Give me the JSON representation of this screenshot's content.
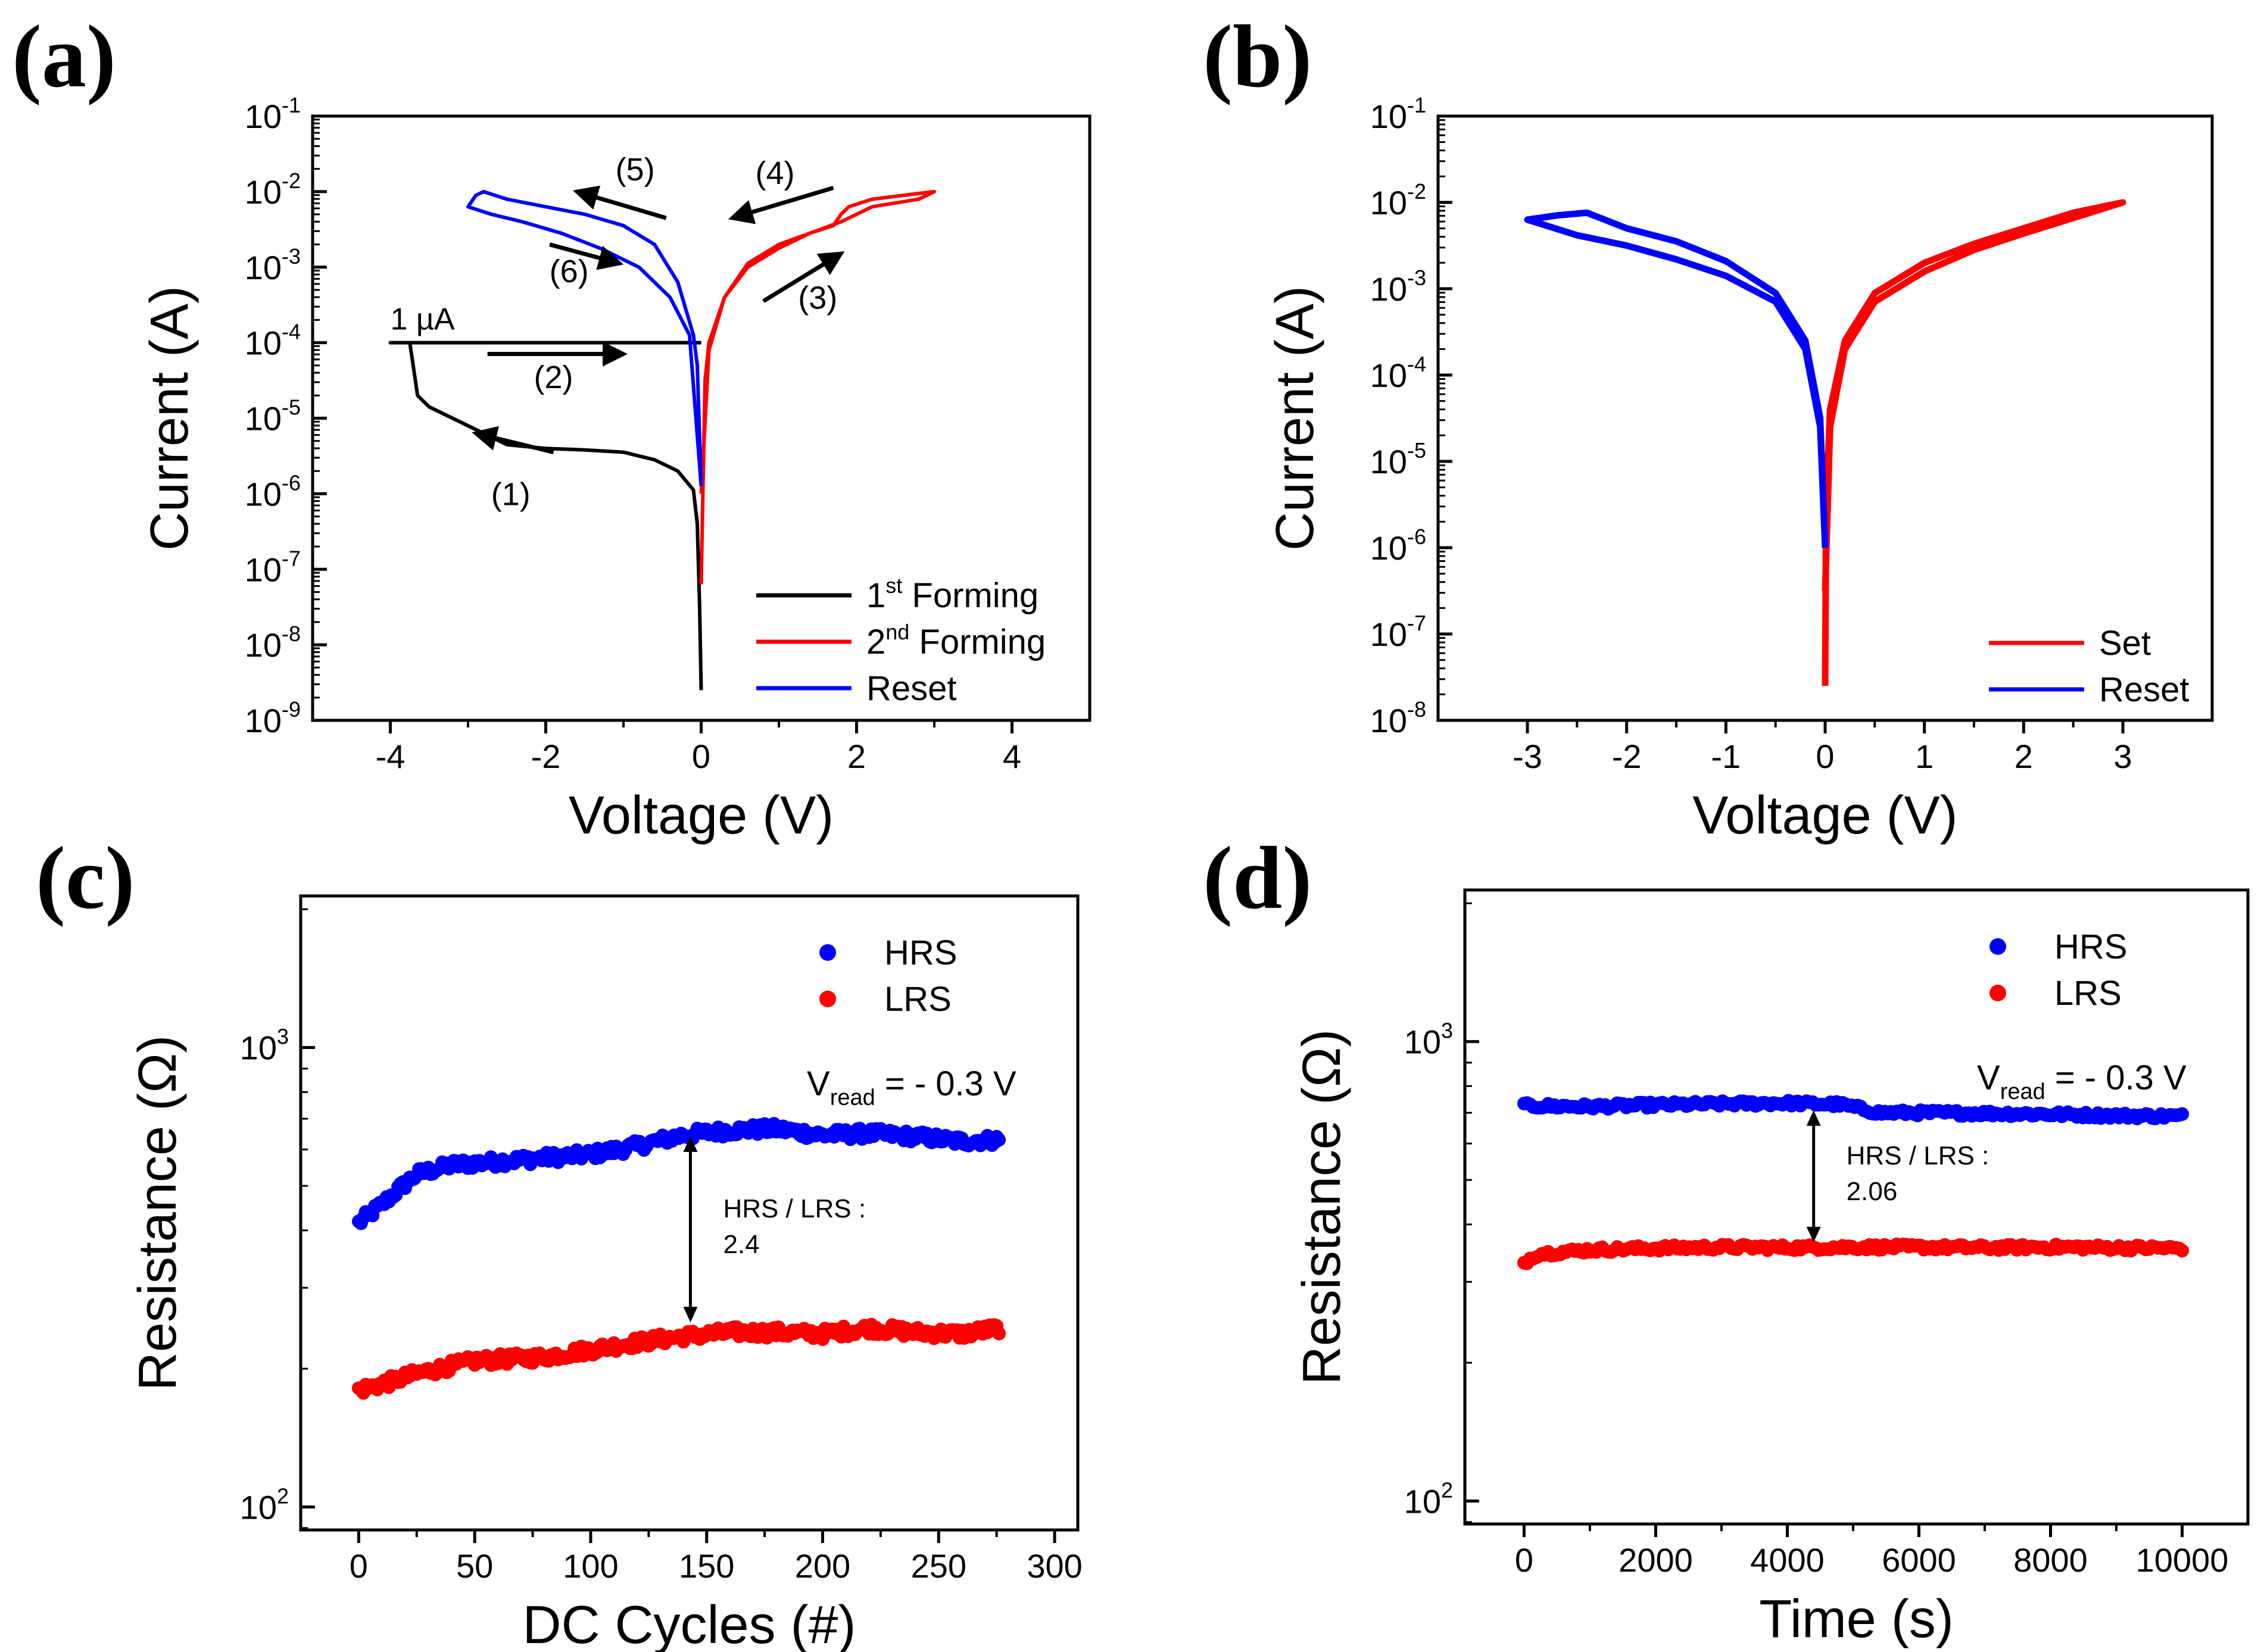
{
  "chart_data": [
    {
      "id": "a",
      "panel_label": "(a)",
      "type": "line",
      "xlabel": "Voltage (V)",
      "ylabel": "Current (A)",
      "yscale": "log",
      "xlim": [
        -5,
        5
      ],
      "ylim_exp": [
        -9,
        -1
      ],
      "x_ticks": [
        "-4",
        "-2",
        "0",
        "2",
        "4"
      ],
      "x_tick_values": [
        -4,
        -2,
        0,
        2,
        4
      ],
      "y_tick_exps": [
        "-9",
        "-8",
        "-7",
        "-6",
        "-5",
        "-4",
        "-3",
        "-2",
        "-1"
      ],
      "y_tick_base": "10",
      "legend": [
        {
          "name_main": "1",
          "name_sup": "st",
          "name_rest": " Forming",
          "color": "#000000"
        },
        {
          "name_main": "2",
          "name_sup": "nd",
          "name_rest": " Forming",
          "color": "#ff0000"
        },
        {
          "name_main": "Reset",
          "name_sup": "",
          "name_rest": "",
          "color": "#0000ff"
        }
      ],
      "annotations": {
        "compliance": "1 µA",
        "steps": [
          "(1)",
          "(2)",
          "(3)",
          "(4)",
          "(5)",
          "(6)"
        ]
      },
      "series": [
        {
          "name": "1st Forming",
          "color": "#000000",
          "points": [
            [
              0.0,
              -8.6
            ],
            [
              -0.02,
              -7.5
            ],
            [
              -0.05,
              -6.4
            ],
            [
              -0.1,
              -5.95
            ],
            [
              -0.3,
              -5.7
            ],
            [
              -0.6,
              -5.55
            ],
            [
              -1.0,
              -5.45
            ],
            [
              -1.5,
              -5.42
            ],
            [
              -2.0,
              -5.4
            ],
            [
              -2.5,
              -5.35
            ],
            [
              -2.6,
              -5.3
            ],
            [
              -2.9,
              -5.15
            ],
            [
              -3.2,
              -5.0
            ],
            [
              -3.5,
              -4.85
            ],
            [
              -3.65,
              -4.7
            ],
            [
              -3.72,
              -4.2
            ],
            [
              -3.75,
              -4.0
            ],
            [
              -4.0,
              -4.0
            ],
            [
              0.0,
              -4.0
            ]
          ]
        },
        {
          "name": "2nd Forming",
          "color": "#ff0000",
          "points": [
            [
              0.0,
              -7.2
            ],
            [
              0.05,
              -4.5
            ],
            [
              0.1,
              -4.0
            ],
            [
              0.3,
              -3.4
            ],
            [
              0.6,
              -2.95
            ],
            [
              1.0,
              -2.7
            ],
            [
              1.4,
              -2.55
            ],
            [
              1.7,
              -2.45
            ],
            [
              1.8,
              -2.3
            ],
            [
              1.9,
              -2.2
            ],
            [
              2.2,
              -2.1
            ],
            [
              2.6,
              -2.05
            ],
            [
              3.0,
              -2.0
            ],
            [
              2.8,
              -2.1
            ],
            [
              2.5,
              -2.15
            ],
            [
              2.2,
              -2.2
            ],
            [
              1.8,
              -2.4
            ],
            [
              1.4,
              -2.55
            ],
            [
              1.0,
              -2.75
            ],
            [
              0.6,
              -3.0
            ],
            [
              0.3,
              -3.4
            ],
            [
              0.1,
              -4.1
            ],
            [
              0.0,
              -6.0
            ]
          ]
        },
        {
          "name": "Reset",
          "color": "#0000ff",
          "points": [
            [
              0.0,
              -5.9
            ],
            [
              -0.05,
              -4.3
            ],
            [
              -0.1,
              -3.9
            ],
            [
              -0.3,
              -3.2
            ],
            [
              -0.6,
              -2.7
            ],
            [
              -1.0,
              -2.45
            ],
            [
              -1.5,
              -2.3
            ],
            [
              -2.0,
              -2.2
            ],
            [
              -2.5,
              -2.1
            ],
            [
              -2.8,
              -2.0
            ],
            [
              -2.9,
              -2.05
            ],
            [
              -3.0,
              -2.2
            ],
            [
              -2.7,
              -2.3
            ],
            [
              -2.3,
              -2.4
            ],
            [
              -1.8,
              -2.55
            ],
            [
              -1.3,
              -2.75
            ],
            [
              -0.8,
              -3.0
            ],
            [
              -0.4,
              -3.4
            ],
            [
              -0.15,
              -3.9
            ],
            [
              0.0,
              -5.9
            ]
          ]
        }
      ]
    },
    {
      "id": "b",
      "panel_label": "(b)",
      "type": "line",
      "xlabel": "Voltage (V)",
      "ylabel": "Current (A)",
      "yscale": "log",
      "xlim": [
        -3.9,
        3.9
      ],
      "ylim_exp": [
        -8,
        -1
      ],
      "x_ticks": [
        "-3",
        "-2",
        "-1",
        "0",
        "1",
        "2",
        "3"
      ],
      "x_tick_values": [
        -3,
        -2,
        -1,
        0,
        1,
        2,
        3
      ],
      "y_tick_exps": [
        "-8",
        "-7",
        "-6",
        "-5",
        "-4",
        "-3",
        "-2",
        "-1"
      ],
      "y_tick_base": "10",
      "legend": [
        {
          "name_main": "Set",
          "name_sup": "",
          "name_rest": "",
          "color": "#ff0000"
        },
        {
          "name_main": "Reset",
          "name_sup": "",
          "name_rest": "",
          "color": "#0000ff"
        }
      ],
      "series": [
        {
          "name": "Set",
          "color": "#ff0000",
          "points": [
            [
              0.0,
              -7.6
            ],
            [
              0.01,
              -5.5
            ],
            [
              0.05,
              -4.4
            ],
            [
              0.2,
              -3.6
            ],
            [
              0.5,
              -3.05
            ],
            [
              1.0,
              -2.7
            ],
            [
              1.5,
              -2.48
            ],
            [
              2.0,
              -2.3
            ],
            [
              2.5,
              -2.12
            ],
            [
              3.0,
              -2.0
            ],
            [
              2.5,
              -2.18
            ],
            [
              2.0,
              -2.36
            ],
            [
              1.5,
              -2.55
            ],
            [
              1.0,
              -2.8
            ],
            [
              0.5,
              -3.15
            ],
            [
              0.2,
              -3.7
            ],
            [
              0.05,
              -4.6
            ],
            [
              0.0,
              -6.5
            ]
          ]
        },
        {
          "name": "Reset",
          "color": "#0000ff",
          "points": [
            [
              0.0,
              -6.0
            ],
            [
              -0.05,
              -4.5
            ],
            [
              -0.2,
              -3.6
            ],
            [
              -0.5,
              -3.05
            ],
            [
              -1.0,
              -2.68
            ],
            [
              -1.5,
              -2.45
            ],
            [
              -2.0,
              -2.3
            ],
            [
              -2.4,
              -2.12
            ],
            [
              -2.7,
              -2.15
            ],
            [
              -3.0,
              -2.2
            ],
            [
              -2.5,
              -2.38
            ],
            [
              -2.0,
              -2.5
            ],
            [
              -1.5,
              -2.66
            ],
            [
              -1.0,
              -2.85
            ],
            [
              -0.5,
              -3.15
            ],
            [
              -0.2,
              -3.7
            ],
            [
              -0.05,
              -4.6
            ],
            [
              0.0,
              -6.0
            ]
          ]
        }
      ]
    },
    {
      "id": "c",
      "panel_label": "(c)",
      "type": "scatter",
      "xlabel": "DC Cycles (#)",
      "ylabel": "Resistance (Ω)",
      "yscale": "log",
      "xlim": [
        -25,
        310
      ],
      "ylim_exp": [
        1.95,
        3.33
      ],
      "x_ticks": [
        "0",
        "50",
        "100",
        "150",
        "200",
        "250",
        "300"
      ],
      "x_tick_values": [
        0,
        50,
        100,
        150,
        200,
        250,
        300
      ],
      "y_tick_exps": [
        "2",
        "3"
      ],
      "y_tick_base": "10",
      "legend": [
        {
          "name_main": "HRS",
          "color": "#0000ff"
        },
        {
          "name_main": "LRS",
          "color": "#ff0000"
        }
      ],
      "vread": {
        "prefix": "V",
        "sub": "read",
        "suffix": " = - 0.3 V"
      },
      "ratio_label": [
        "HRS / LRS :",
        "2.4"
      ],
      "ratio_x": 143,
      "ratio_range": [
        245,
        660
      ],
      "series": [
        {
          "name": "HRS",
          "color": "#0000ff",
          "count": 277,
          "anchors": [
            [
              0,
              415
            ],
            [
              10,
              455
            ],
            [
              25,
              530
            ],
            [
              40,
              555
            ],
            [
              60,
              565
            ],
            [
              80,
              575
            ],
            [
              100,
              585
            ],
            [
              120,
              610
            ],
            [
              140,
              645
            ],
            [
              160,
              660
            ],
            [
              180,
              665
            ],
            [
              200,
              645
            ],
            [
              220,
              650
            ],
            [
              240,
              640
            ],
            [
              260,
              625
            ],
            [
              276,
              630
            ]
          ],
          "jitter": 0.012
        },
        {
          "name": "LRS",
          "color": "#ff0000",
          "count": 277,
          "anchors": [
            [
              0,
              180
            ],
            [
              10,
              185
            ],
            [
              25,
              195
            ],
            [
              50,
              208
            ],
            [
              80,
              212
            ],
            [
              100,
              220
            ],
            [
              120,
              228
            ],
            [
              140,
              235
            ],
            [
              160,
              240
            ],
            [
              180,
              240
            ],
            [
              200,
              238
            ],
            [
              220,
              245
            ],
            [
              240,
              240
            ],
            [
              260,
              238
            ],
            [
              276,
              245
            ]
          ],
          "jitter": 0.012
        }
      ]
    },
    {
      "id": "d",
      "panel_label": "(d)",
      "type": "scatter",
      "xlabel": "Time (s)",
      "ylabel": "Resistance (Ω)",
      "yscale": "log",
      "xlim": [
        -900,
        11000
      ],
      "ylim_exp": [
        1.95,
        3.33
      ],
      "x_ticks": [
        "0",
        "2000",
        "4000",
        "6000",
        "8000",
        "10000"
      ],
      "x_tick_values": [
        0,
        2000,
        4000,
        6000,
        8000,
        10000
      ],
      "y_tick_exps": [
        "2",
        "3"
      ],
      "y_tick_base": "10",
      "legend": [
        {
          "name_main": "HRS",
          "color": "#0000ff"
        },
        {
          "name_main": "LRS",
          "color": "#ff0000"
        }
      ],
      "vread": {
        "prefix": "V",
        "sub": "read",
        "suffix": " = - 0.3 V"
      },
      "ratio_label": [
        "HRS / LRS :",
        "2.06"
      ],
      "ratio_x": 4400,
      "ratio_range": [
        355,
        730
      ],
      "series": [
        {
          "name": "HRS",
          "color": "#0000ff",
          "count": 220,
          "anchors": [
            [
              0,
              725
            ],
            [
              1000,
              722
            ],
            [
              2000,
              728
            ],
            [
              3000,
              732
            ],
            [
              4000,
              735
            ],
            [
              4800,
              730
            ],
            [
              5400,
              700
            ],
            [
              6000,
              700
            ],
            [
              7000,
              698
            ],
            [
              8000,
              695
            ],
            [
              9000,
              690
            ],
            [
              10000,
              688
            ]
          ],
          "jitter": 0.006
        },
        {
          "name": "LRS",
          "color": "#ff0000",
          "count": 220,
          "anchors": [
            [
              0,
              330
            ],
            [
              200,
              345
            ],
            [
              1000,
              352
            ],
            [
              2000,
              355
            ],
            [
              3000,
              357
            ],
            [
              4000,
              356
            ],
            [
              5000,
              357
            ],
            [
              6000,
              357
            ],
            [
              7000,
              356
            ],
            [
              8000,
              357
            ],
            [
              9000,
              356
            ],
            [
              10000,
              355
            ]
          ],
          "jitter": 0.006
        }
      ]
    }
  ]
}
